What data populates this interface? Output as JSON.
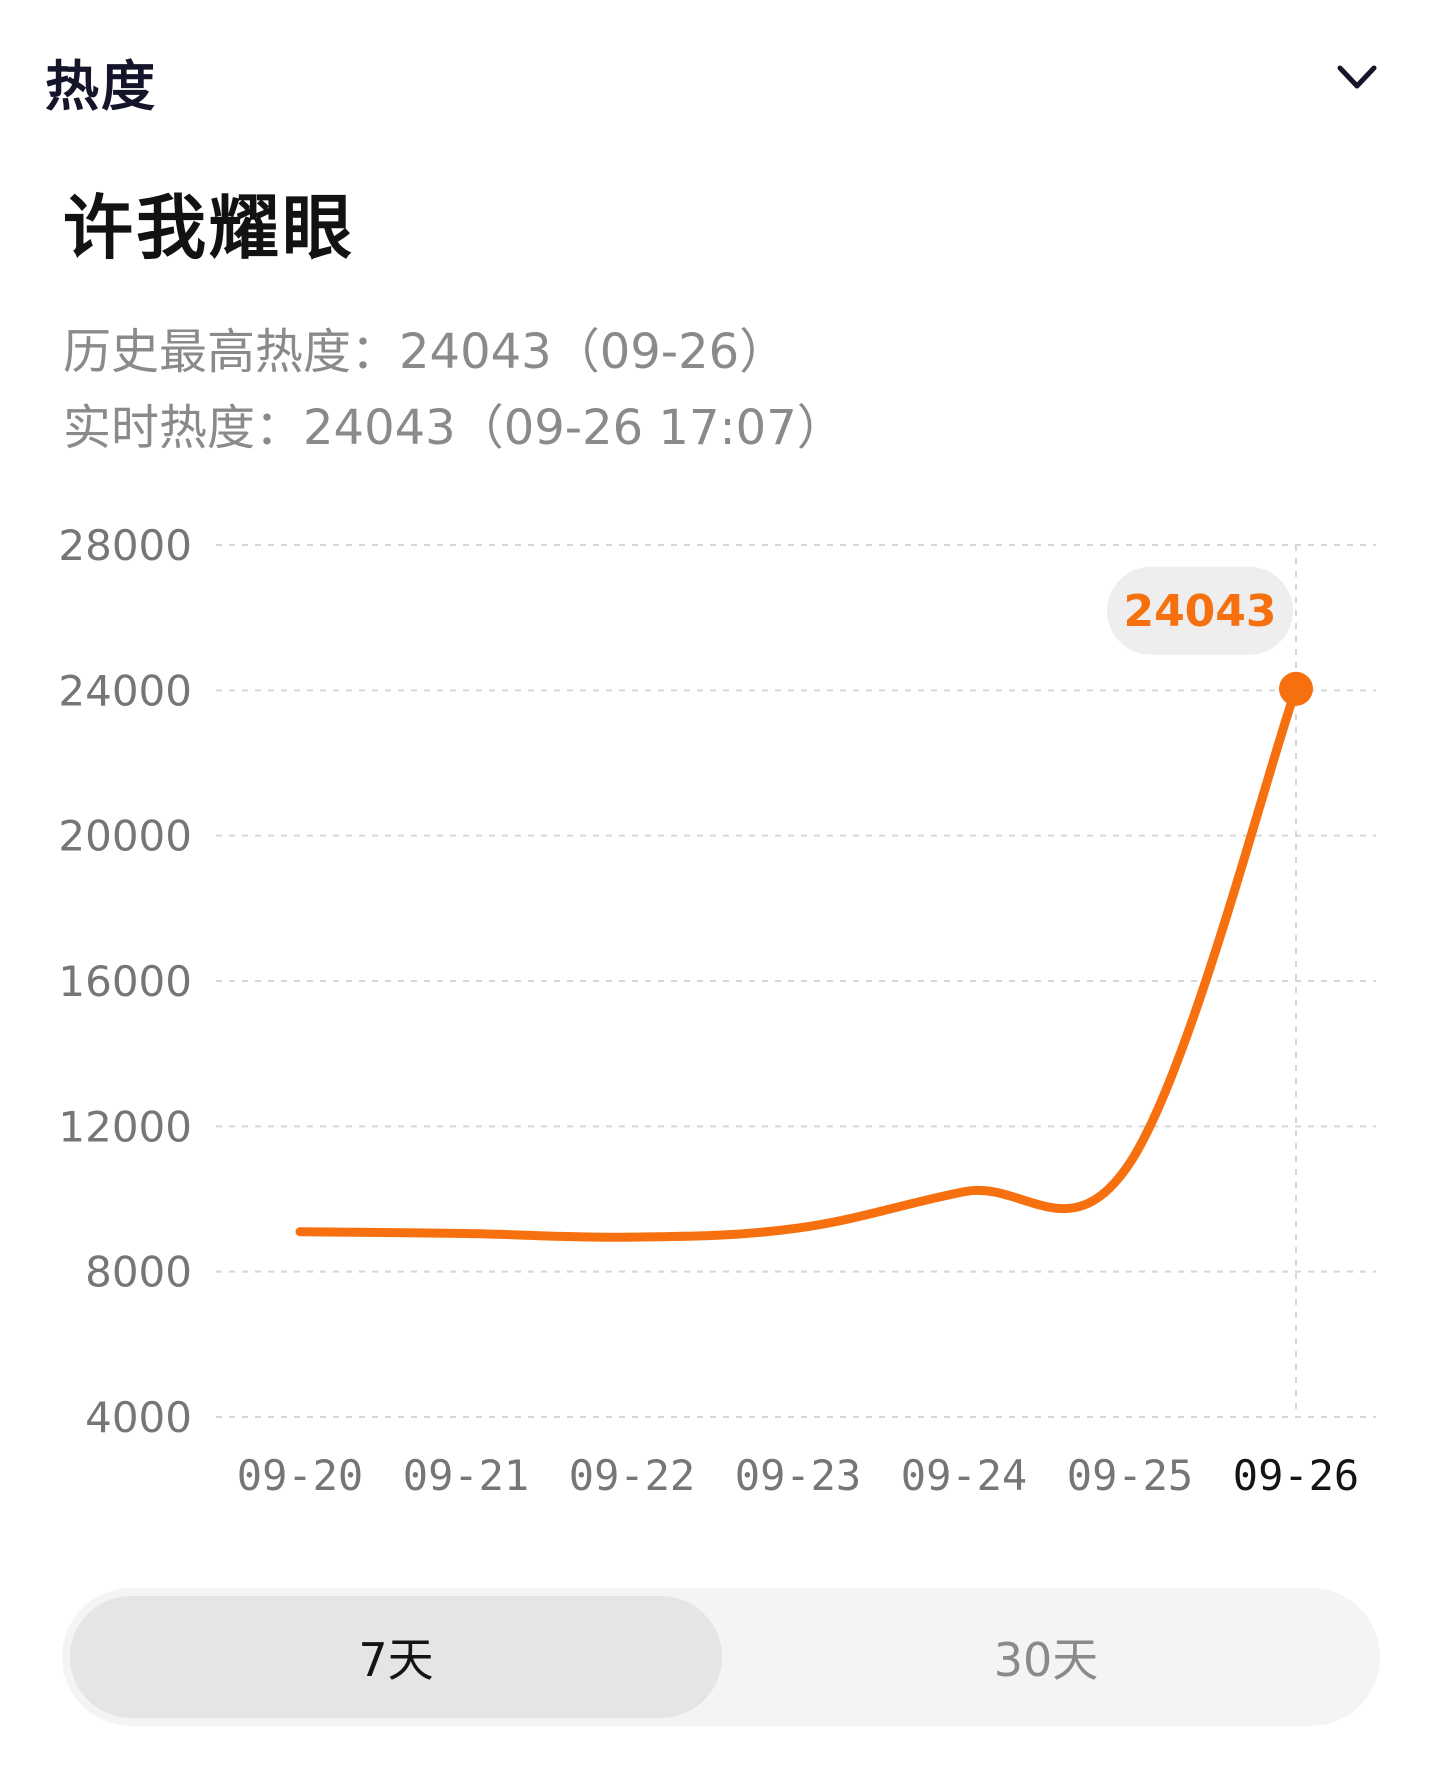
{
  "header": {
    "title": "热度",
    "expand_icon": "chevron-down-icon"
  },
  "topic": {
    "title": "许我耀眼"
  },
  "stats": {
    "history_max": "历史最高热度：24043（09-26）",
    "realtime": "实时热度：24043（09-26 17:07）"
  },
  "colors": {
    "line": "#F7700F",
    "bubble_bg": "#EEEEEE",
    "grid": "#D6D6D6",
    "axis_text": "#767676",
    "axis_text_active": "#141414"
  },
  "chart_data": {
    "type": "line",
    "x": [
      "09-20",
      "09-21",
      "09-22",
      "09-23",
      "09-24",
      "09-25",
      "09-26"
    ],
    "series": [
      {
        "values": [
          9100,
          9050,
          8950,
          9200,
          10200,
          11000,
          24043
        ]
      }
    ],
    "y_ticks": [
      28000,
      24000,
      20000,
      16000,
      12000,
      8000,
      4000
    ],
    "ylim": [
      4000,
      28000
    ],
    "grid": true,
    "highlight": {
      "x": "09-26",
      "value": 24043,
      "label": "24043"
    }
  },
  "range_toggle": {
    "options": [
      "7天",
      "30天"
    ],
    "selected": "7天"
  }
}
